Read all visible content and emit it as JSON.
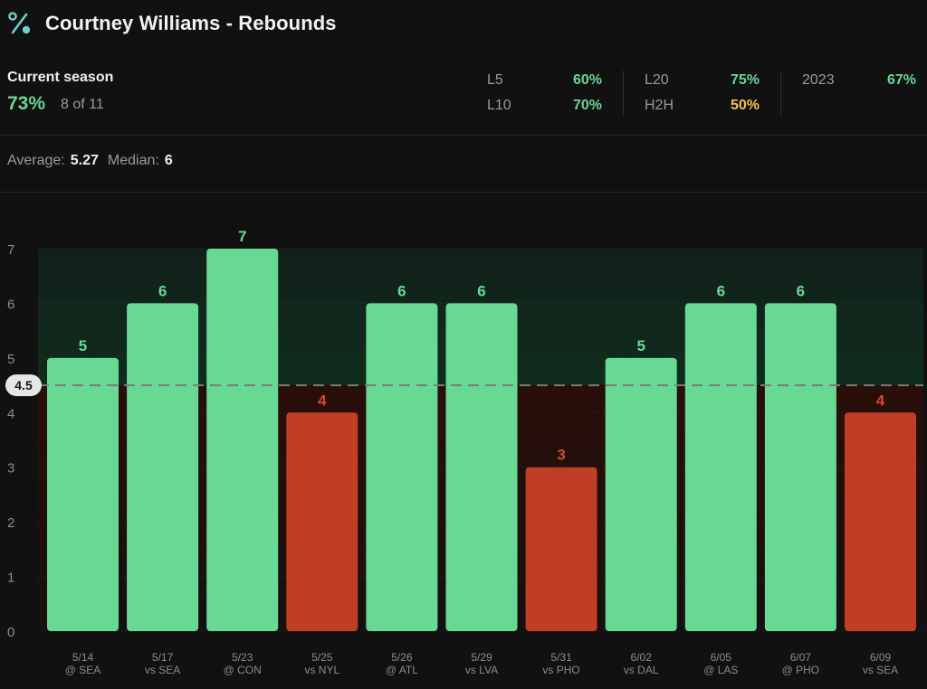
{
  "header": {
    "icon": "percent-icon",
    "title": "Courtney Williams - Rebounds"
  },
  "season": {
    "label": "Current season",
    "hit_rate": "73%",
    "record": "8 of 11"
  },
  "splits": {
    "l5": {
      "label": "L5",
      "value": "60%"
    },
    "l10": {
      "label": "L10",
      "value": "70%"
    },
    "l20": {
      "label": "L20",
      "value": "75%"
    },
    "h2h": {
      "label": "H2H",
      "value": "50%"
    },
    "y2023": {
      "label": "2023",
      "value": "67%"
    }
  },
  "summary": {
    "average_label": "Average:",
    "average_value": "5.27",
    "median_label": "Median:",
    "median_value": "6"
  },
  "colors": {
    "hit": "#68d995",
    "miss": "#c03e26",
    "accent_green": "#6ad596",
    "accent_yellow": "#f3c447"
  },
  "chart_data": {
    "type": "bar",
    "line": 4.5,
    "line_label": "4.5",
    "ylim": [
      0,
      7
    ],
    "yticks": [
      0,
      1,
      2,
      3,
      4,
      5,
      6,
      7
    ],
    "grid": true,
    "categories": [
      {
        "date": "5/14",
        "opponent": "@ SEA"
      },
      {
        "date": "5/17",
        "opponent": "vs SEA"
      },
      {
        "date": "5/23",
        "opponent": "@ CON"
      },
      {
        "date": "5/25",
        "opponent": "vs NYL"
      },
      {
        "date": "5/26",
        "opponent": "@ ATL"
      },
      {
        "date": "5/29",
        "opponent": "vs LVA"
      },
      {
        "date": "5/31",
        "opponent": "vs PHO"
      },
      {
        "date": "6/02",
        "opponent": "vs DAL"
      },
      {
        "date": "6/05",
        "opponent": "@ LAS"
      },
      {
        "date": "6/07",
        "opponent": "@ PHO"
      },
      {
        "date": "6/09",
        "opponent": "vs SEA"
      }
    ],
    "values": [
      5,
      6,
      7,
      4,
      6,
      6,
      3,
      5,
      6,
      6,
      4
    ]
  }
}
